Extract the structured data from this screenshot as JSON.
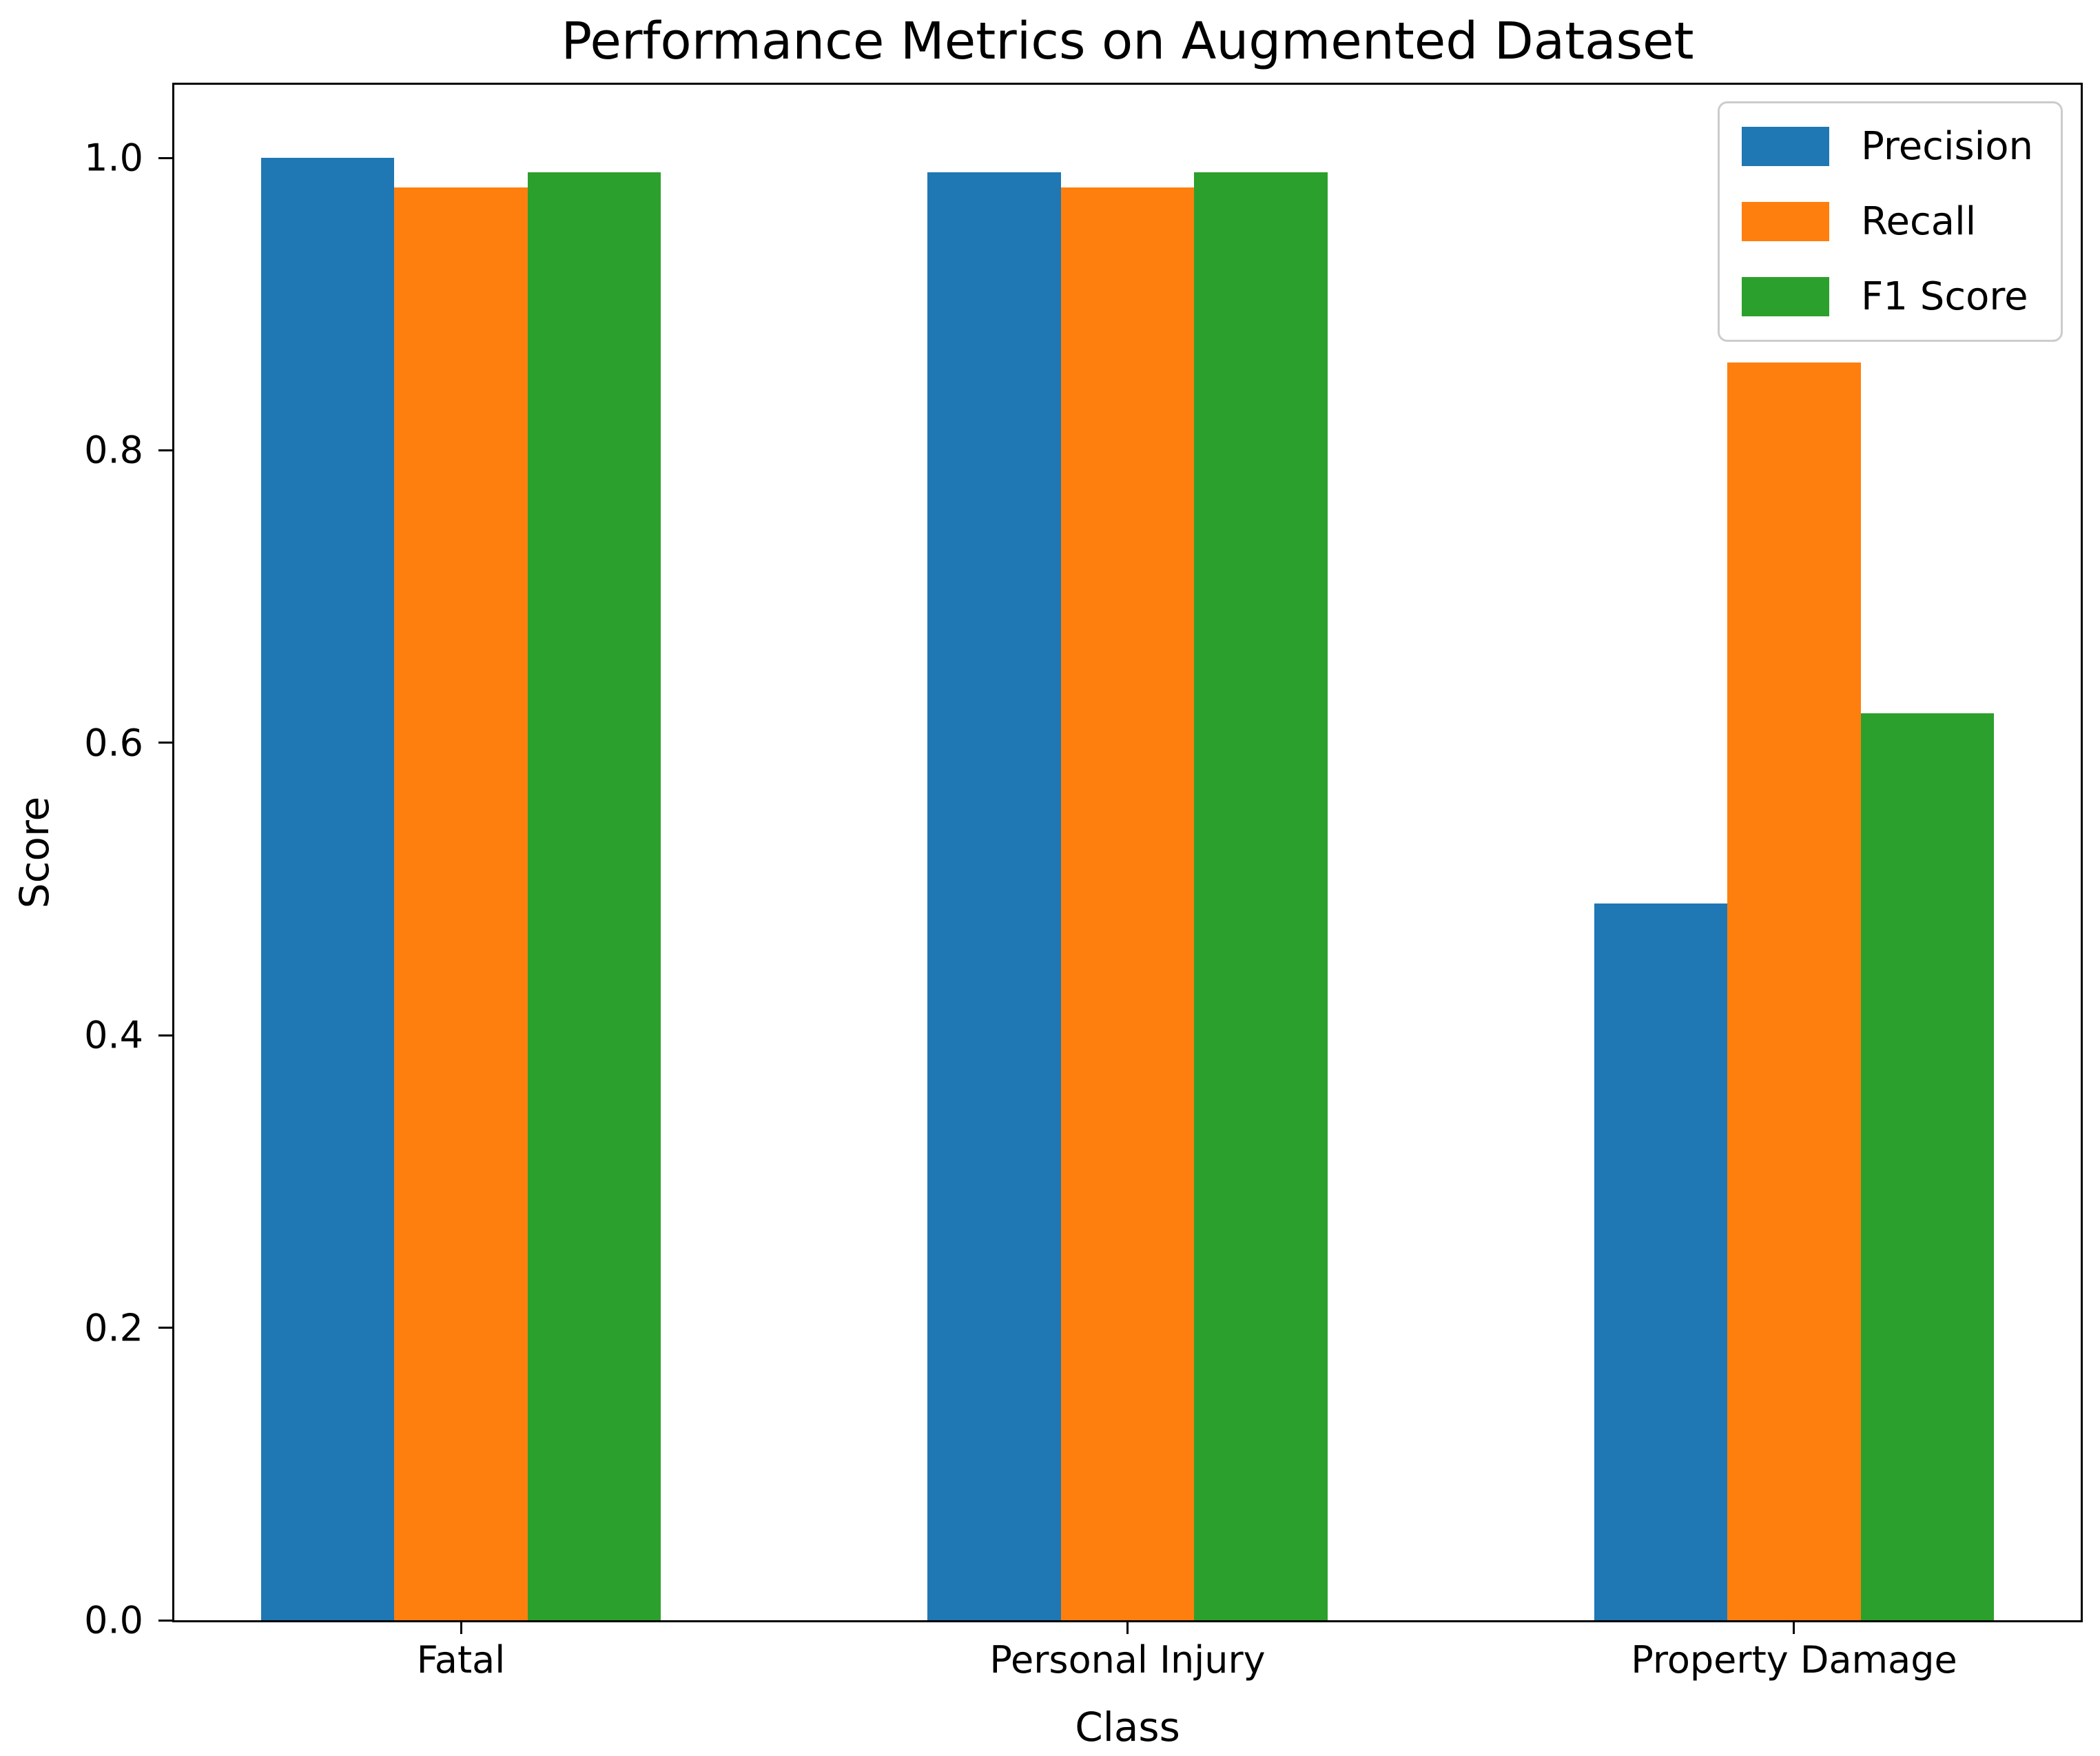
{
  "figure": {
    "title": "Performance Metrics on Augmented Dataset"
  },
  "chart_data": {
    "type": "bar",
    "title": "Performance Metrics on Augmented Dataset",
    "xlabel": "Class",
    "ylabel": "Score",
    "categories": [
      "Fatal",
      "Personal Injury",
      "Property Damage"
    ],
    "series": [
      {
        "name": "Precision",
        "color": "#1f77b4",
        "values": [
          1.0,
          0.99,
          0.49
        ]
      },
      {
        "name": "Recall",
        "color": "#ff7f0e",
        "values": [
          0.98,
          0.98,
          0.86
        ]
      },
      {
        "name": "F1 Score",
        "color": "#2ca02c",
        "values": [
          0.99,
          0.99,
          0.62
        ]
      }
    ],
    "ylim": [
      0,
      1.05
    ],
    "yticks": [
      0.0,
      0.2,
      0.4,
      0.6,
      0.8,
      1.0
    ],
    "ytick_labels": [
      "0.0",
      "0.2",
      "0.4",
      "0.6",
      "0.8",
      "1.0"
    ],
    "xlim": [
      -0.43,
      2.43
    ],
    "bar_width_units": 0.2,
    "group_offsets": [
      -0.2,
      0.0,
      0.2
    ],
    "grid": false,
    "legend_position": "upper right",
    "spine_color": "#000000",
    "background_color": "#ffffff"
  }
}
